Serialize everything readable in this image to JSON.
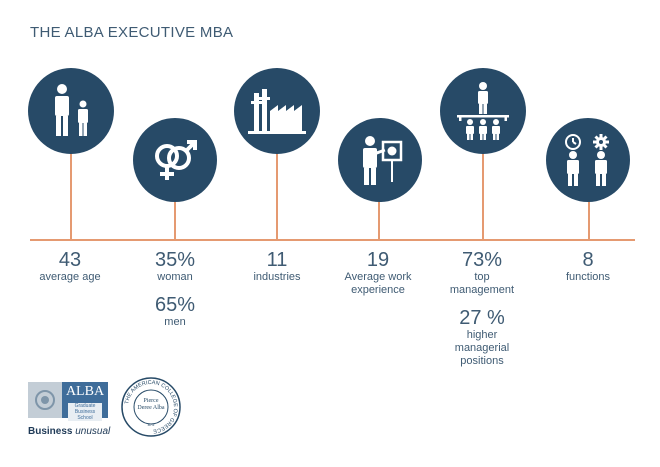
{
  "title": "THE ALBA EXECUTIVE MBA",
  "colors": {
    "navy": "#274a67",
    "text": "#3f5b73",
    "accent": "#e59a71"
  },
  "stats": [
    {
      "icon": "people-adult-child-icon",
      "value": "43",
      "label": "average age"
    },
    {
      "icon": "gender-symbols-icon",
      "value": "35%",
      "label": "woman",
      "value2": "65%",
      "label2": "men"
    },
    {
      "icon": "factory-icon",
      "value": "11",
      "label": "industries"
    },
    {
      "icon": "presenter-icon",
      "value": "19",
      "label": "Average work experience"
    },
    {
      "icon": "org-chart-icon",
      "value": "73%",
      "label": "top management",
      "value2": "27 %",
      "label2": "higher managerial positions"
    },
    {
      "icon": "team-functions-icon",
      "value": "8",
      "label": "functions"
    }
  ],
  "logos": {
    "alba_name": "ALBA",
    "alba_sub": "Graduate Business School",
    "tagline_bold": "Business",
    "tagline_italic": "unusual",
    "college_ring": "THE AMERICAN COLLEGE OF GREECE",
    "college_center": "Pierce Deree Alba",
    "college_year": "875"
  }
}
